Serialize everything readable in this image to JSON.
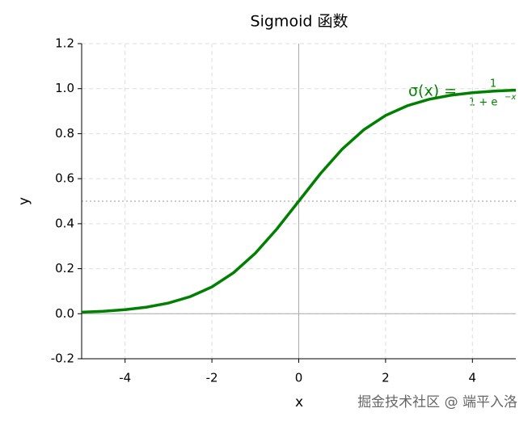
{
  "chart_data": {
    "type": "line",
    "title": "Sigmoid 函数",
    "xlabel": "x",
    "ylabel": "y",
    "x": [
      -5,
      -4.5,
      -4,
      -3.5,
      -3,
      -2.5,
      -2,
      -1.5,
      -1,
      -0.5,
      0,
      0.5,
      1,
      1.5,
      2,
      2.5,
      3,
      3.5,
      4,
      4.5,
      5
    ],
    "series": [
      {
        "name": "sigmoid",
        "color": "#008000",
        "values": [
          0.0067,
          0.011,
          0.018,
          0.0293,
          0.0474,
          0.0759,
          0.1192,
          0.1824,
          0.2689,
          0.3775,
          0.5,
          0.6225,
          0.7311,
          0.8176,
          0.8808,
          0.9241,
          0.9526,
          0.9707,
          0.982,
          0.989,
          0.9933
        ]
      }
    ],
    "xlim": [
      -5,
      5
    ],
    "ylim": [
      -0.2,
      1.2
    ],
    "xticks": [
      -4,
      -2,
      0,
      2,
      4
    ],
    "yticks": [
      -0.2,
      {
        "value": 0,
        "label": "0.0"
      },
      0.2,
      0.4,
      0.6,
      0.8,
      {
        "value": 1,
        "label": "1.0"
      },
      1.2
    ],
    "grid": true,
    "reference_lines": [
      {
        "axis": "y",
        "value": 0.5,
        "style": "dotted"
      },
      {
        "axis": "y",
        "value": 0,
        "style": "solid"
      },
      {
        "axis": "x",
        "value": 0,
        "style": "solid"
      }
    ],
    "annotation": {
      "lhs": "σ(x) =",
      "numerator": "1",
      "denominator": "1 + e",
      "exponent": "−x"
    },
    "watermark": "掘金技术社区 @ 端平入洛"
  }
}
